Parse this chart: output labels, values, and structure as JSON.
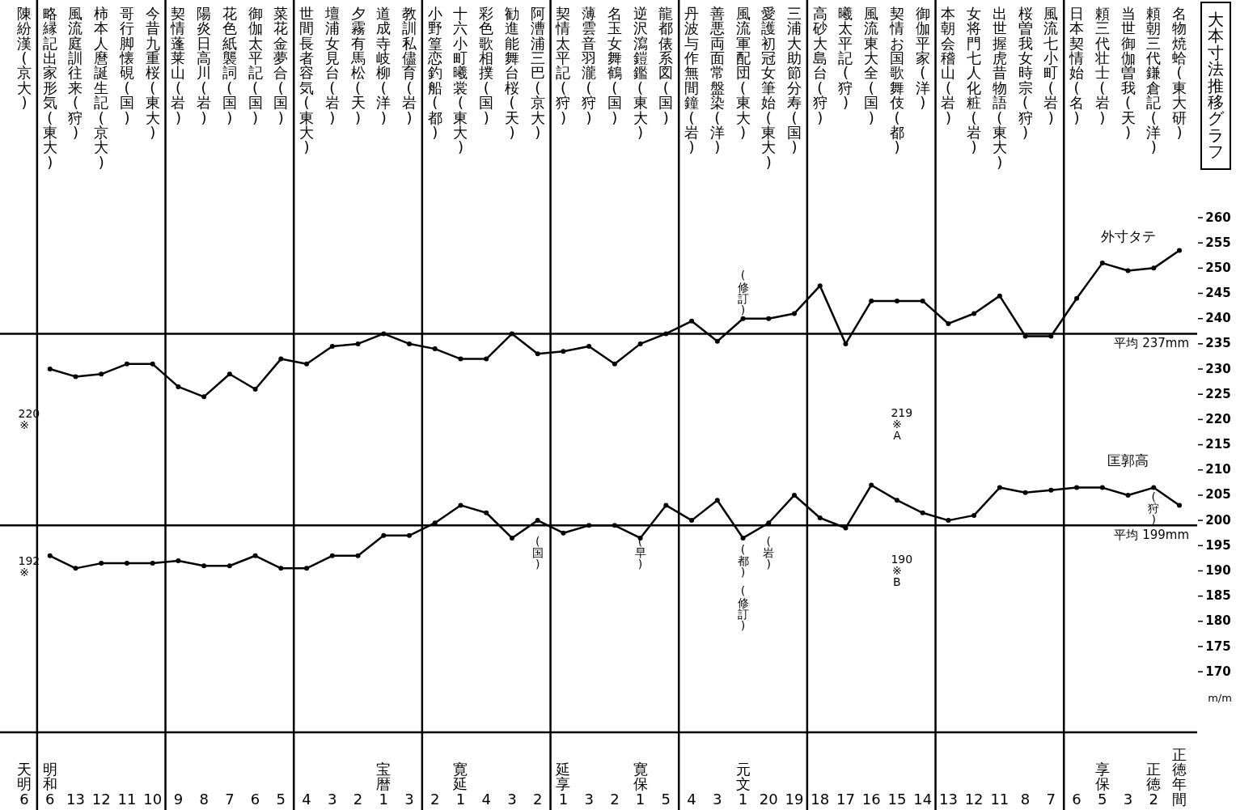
{
  "chart_data": {
    "type": "line",
    "title": "大本寸法推移グラフ",
    "ylabel": "m/m",
    "categories": [
      "陳紛漢(京大)",
      "略縁記出家形気(東大)",
      "風流庭訓往来(狩)",
      "柿本人麿誕生記(京大)",
      "哥行脚懐硯(国)",
      "今昔九重桜(東大)",
      "契情蓬莱山(岩)",
      "陽炎日高川(岩)",
      "花色紙襲詞(国)",
      "御伽太平記(国)",
      "菜花金夢合(国)",
      "世間長者容気(東大)",
      "壇浦女見台(岩)",
      "夕霧有馬松(天)",
      "道成寺岐柳(洋)",
      "教訓私儘育(岩)",
      "小野篁恋釣船(都)",
      "十六小町曦裳(東大)",
      "彩色歌相撲(国)",
      "勧進能舞台桜(天)",
      "阿漕浦三巴(京大)",
      "契情太平記(狩)",
      "薄雲音羽瀧(狩)",
      "名玉女舞鶴(国)",
      "逆沢瀉鎧鑑(東大)",
      "龍都俵系図(国)",
      "丹波与作無間鐘(岩)",
      "善悪両面常盤染(洋)",
      "風流軍配団(東大)",
      "愛護初冠女筆始(東大)",
      "三浦大助節分寿(国)",
      "高砂大島台(狩)",
      "曦太平記(狩)",
      "風流東大全(国)",
      "契情お国歌舞伎(都)",
      "御伽平家(洋)",
      "本朝会稽山(岩)",
      "女将門七人化粧(岩)",
      "出世握虎昔物語(東大)",
      "桜曽我女時宗(狩)",
      "風流七小町(岩)",
      "日本契情始(名)",
      "頼三代壮士(岩)",
      "当世御伽曽我(天)",
      "頼朝三代鎌倉記(洋)",
      "名物焼蛤(東大研)"
    ],
    "series": [
      {
        "name": "外寸タテ",
        "color": "#000000",
        "values": [
          null,
          230,
          228.5,
          229,
          231,
          231,
          226.5,
          224.5,
          229,
          226,
          232,
          231,
          234.5,
          235,
          237,
          235,
          234,
          232,
          232,
          237,
          233,
          233.5,
          234.5,
          231,
          235,
          237,
          239.5,
          235.5,
          240,
          240,
          241,
          246.5,
          235,
          243.5,
          243.5,
          243.5,
          239,
          241,
          244.5,
          236.5,
          236.5,
          244,
          251,
          249.5,
          250,
          253.5
        ]
      },
      {
        "name": "匡郭高",
        "color": "#000000",
        "values": [
          null,
          193,
          190.5,
          191.5,
          191.5,
          191.5,
          192,
          191,
          191,
          193,
          190.5,
          190.5,
          193,
          193,
          197,
          197,
          199.5,
          203,
          201.5,
          196.5,
          200,
          197.5,
          199,
          199,
          196.5,
          203,
          200,
          204,
          196.5,
          199.5,
          205,
          200.5,
          198.5,
          207,
          204,
          201.5,
          200,
          201,
          206.5,
          205.5,
          206,
          206.5,
          206.5,
          205,
          206.5,
          203
        ]
      }
    ],
    "ylim": [
      158,
      260
    ],
    "yticks": [
      170,
      175,
      180,
      185,
      190,
      195,
      200,
      205,
      210,
      215,
      220,
      225,
      230,
      235,
      240,
      245,
      250,
      255,
      260
    ],
    "marker": "circle",
    "ref_lines": [
      {
        "axis": "y",
        "value": 237,
        "label": "平均 237mm"
      },
      {
        "axis": "y",
        "value": 199,
        "label": "平均 199mm"
      }
    ],
    "annotations": [
      "天明6",
      "明和6",
      "13",
      "12",
      "11",
      "10",
      "9",
      "8",
      "7",
      "6",
      "5",
      "4",
      "3",
      "2",
      "宝暦1",
      "3",
      "2",
      "寛延1",
      "4",
      "3",
      "2",
      "延享1",
      "3",
      "2",
      "寛保1",
      "5",
      "4",
      "3",
      "元文1",
      "20",
      "19",
      "18",
      "17",
      "16",
      "15",
      "14",
      "13",
      "12",
      "11",
      "8",
      "7",
      "6",
      "享保5",
      "3",
      "正徳2",
      "正徳年間",
      "220※",
      "192※",
      "219※A",
      "190※B",
      "(修訂)",
      "(国)",
      "(早)",
      "(都)",
      "(修訂)",
      "(岩)",
      "(狩)"
    ]
  }
}
